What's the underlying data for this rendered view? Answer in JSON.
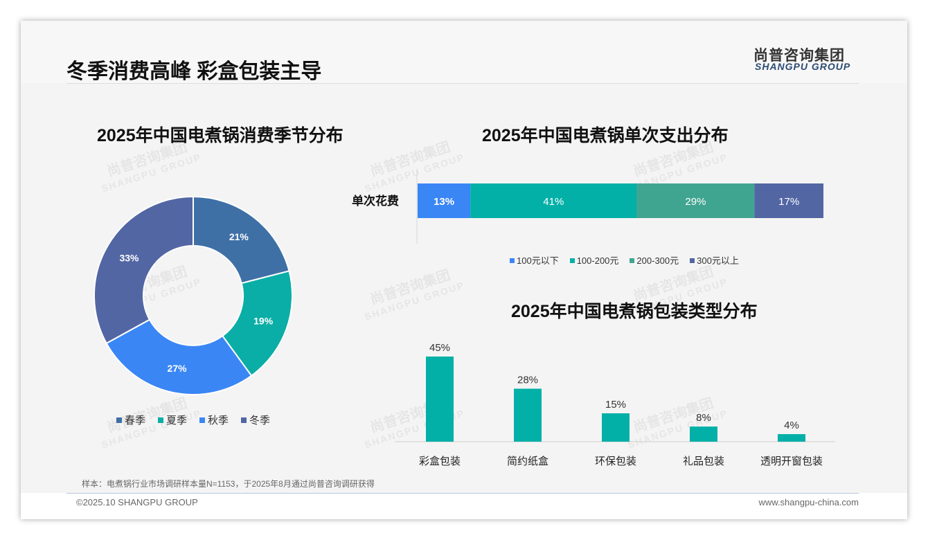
{
  "header": {
    "title": "冬季消费高峰 彩盒包装主导",
    "logo_cn": "尚普咨询集团",
    "logo_en": "SHANGPU GROUP"
  },
  "footer": {
    "note": "样本：电煮锅行业市场调研样本量N=1153，于2025年8月通过尚普咨询调研获得",
    "copyright": "©2025.10 SHANGPU GROUP",
    "url": "www.shangpu-china.com"
  },
  "watermark": {
    "cn": "尚普咨询集团",
    "en": "SHANGPU GROUP"
  },
  "chart_data": [
    {
      "type": "pie",
      "title": "2025年中国电煮锅消费季节分布",
      "categories": [
        "春季",
        "夏季",
        "秋季",
        "冬季"
      ],
      "values": [
        21,
        19,
        27,
        33
      ],
      "labels": [
        "21%",
        "19%",
        "27%",
        "33%"
      ],
      "colors": [
        "#3e70a6",
        "#0aaea6",
        "#3a86f5",
        "#5366a4"
      ],
      "legend": "bottom"
    },
    {
      "type": "bar",
      "stacked": true,
      "orientation": "horizontal",
      "title": "2025年中国电煮锅单次支出分布",
      "categories": [
        "单次花费"
      ],
      "series": [
        {
          "name": "100元以下",
          "values": [
            13
          ],
          "label": "13%",
          "color": "#3a86f5"
        },
        {
          "name": "100-200元",
          "values": [
            41
          ],
          "label": "41%",
          "color": "#02b0a7"
        },
        {
          "name": "200-300元",
          "values": [
            29
          ],
          "label": "29%",
          "color": "#40a590"
        },
        {
          "name": "300元以上",
          "values": [
            17
          ],
          "label": "17%",
          "color": "#5366a4"
        }
      ],
      "legend": "bottom"
    },
    {
      "type": "bar",
      "title": "2025年中国电煮锅包装类型分布",
      "categories": [
        "彩盒包装",
        "简约纸盒",
        "环保包装",
        "礼品包装",
        "透明开窗包装"
      ],
      "values": [
        45,
        28,
        15,
        8,
        4
      ],
      "labels": [
        "45%",
        "28%",
        "15%",
        "8%",
        "4%"
      ],
      "color": "#02b0a7",
      "ylim": [
        0,
        45
      ]
    }
  ]
}
